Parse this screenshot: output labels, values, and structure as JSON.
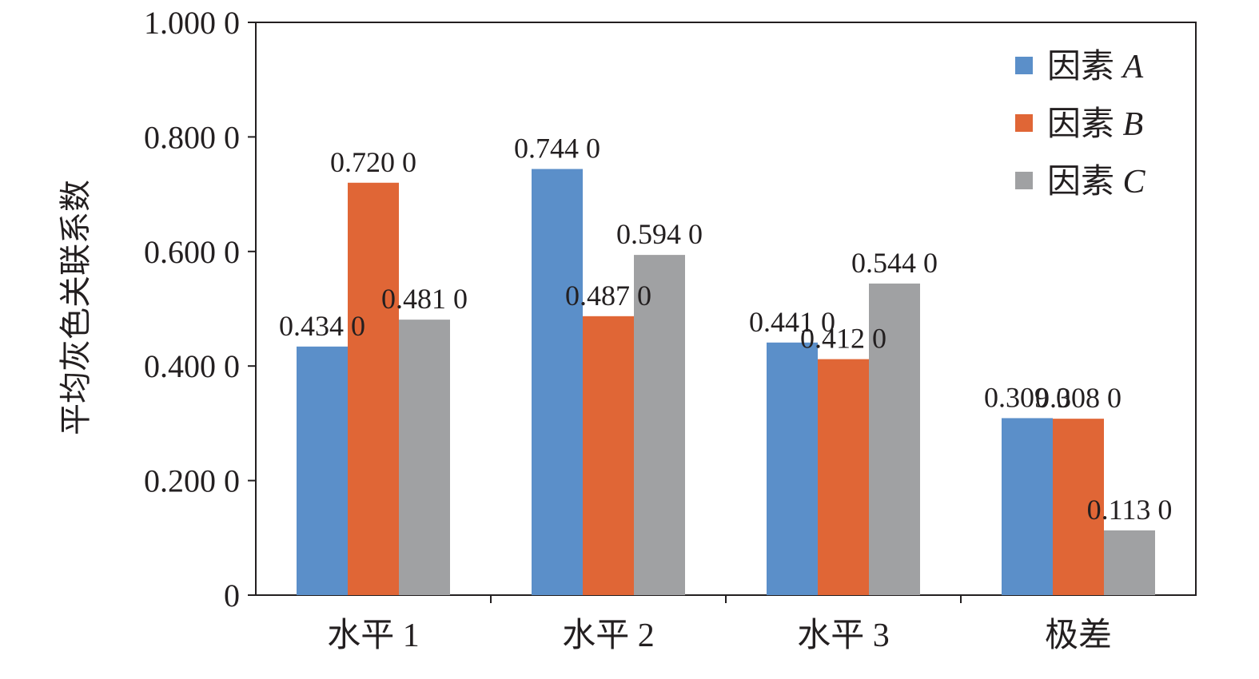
{
  "chart_data": {
    "type": "bar",
    "title": "",
    "xlabel": "",
    "ylabel": "平均灰色关联系数",
    "ylim": [
      0,
      1.0
    ],
    "yticks": [
      0,
      0.2,
      0.4,
      0.6,
      0.8,
      1.0
    ],
    "ytick_labels": [
      "0",
      "0.200 0",
      "0.400 0",
      "0.600 0",
      "0.800 0",
      "1.000 0"
    ],
    "categories": [
      "水平 1",
      "水平 2",
      "水平 3",
      "极差"
    ],
    "series": [
      {
        "name": "因素 A",
        "legend_prefix": "因素",
        "legend_var": "A",
        "color": "#5b8fc9",
        "values": [
          0.434,
          0.744,
          0.441,
          0.309
        ],
        "labels": [
          "0.434 0",
          "0.744 0",
          "0.441 0",
          "0.309 0"
        ]
      },
      {
        "name": "因素 B",
        "legend_prefix": "因素",
        "legend_var": "B",
        "color": "#e06636",
        "values": [
          0.72,
          0.487,
          0.412,
          0.308
        ],
        "labels": [
          "0.720 0",
          "0.487 0",
          "0.412 0",
          "0.308 0"
        ]
      },
      {
        "name": "因素 C",
        "legend_prefix": "因素",
        "legend_var": "C",
        "color": "#a0a1a3",
        "values": [
          0.481,
          0.594,
          0.544,
          0.113
        ],
        "labels": [
          "0.481 0",
          "0.594 0",
          "0.544 0",
          "0.113 0"
        ]
      }
    ],
    "legend_position": "top-right",
    "grid": false
  }
}
